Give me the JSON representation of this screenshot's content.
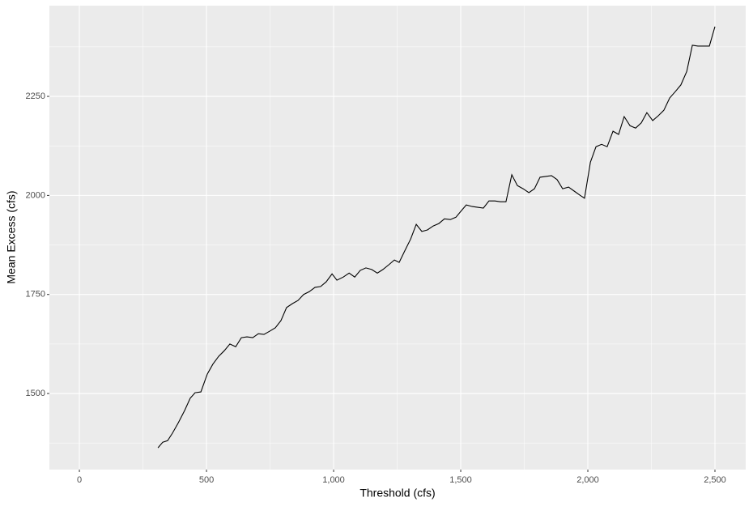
{
  "chart_data": {
    "type": "line",
    "x_label": "Threshold (cfs)",
    "y_label": "Mean Excess (cfs)",
    "x": [
      309,
      328,
      347,
      366,
      389,
      414,
      436,
      455,
      478,
      503,
      525,
      548,
      570,
      592,
      615,
      637,
      659,
      682,
      704,
      726,
      748,
      771,
      793,
      815,
      838,
      860,
      882,
      904,
      927,
      949,
      971,
      994,
      1013,
      1038,
      1061,
      1083,
      1105,
      1127,
      1150,
      1172,
      1194,
      1217,
      1239,
      1258,
      1280,
      1303,
      1325,
      1347,
      1369,
      1392,
      1414,
      1436,
      1459,
      1481,
      1503,
      1522,
      1545,
      1567,
      1589,
      1611,
      1634,
      1656,
      1678,
      1701,
      1723,
      1745,
      1768,
      1790,
      1812,
      1834,
      1857,
      1879,
      1901,
      1924,
      1946,
      1968,
      1987,
      2010,
      2032,
      2054,
      2076,
      2099,
      2121,
      2143,
      2166,
      2188,
      2210,
      2232,
      2255,
      2277,
      2299,
      2322,
      2344,
      2366,
      2389,
      2411,
      2433,
      2455,
      2478,
      2500
    ],
    "series": [
      {
        "color": "#000000",
        "values": [
          1363,
          1377,
          1381,
          1400,
          1426,
          1457,
          1488,
          1502,
          1504,
          1549,
          1574,
          1594,
          1608,
          1625,
          1618,
          1641,
          1643,
          1641,
          1651,
          1649,
          1657,
          1666,
          1684,
          1717,
          1727,
          1735,
          1750,
          1757,
          1768,
          1770,
          1782,
          1802,
          1786,
          1794,
          1804,
          1794,
          1811,
          1817,
          1813,
          1804,
          1813,
          1825,
          1837,
          1831,
          1860,
          1890,
          1927,
          1909,
          1913,
          1923,
          1929,
          1941,
          1939,
          1945,
          1962,
          1976,
          1972,
          1970,
          1968,
          1986,
          1986,
          1984,
          1984,
          2052,
          2025,
          2017,
          2007,
          2017,
          2046,
          2048,
          2050,
          2040,
          2017,
          2021,
          2011,
          2001,
          1993,
          2084,
          2123,
          2129,
          2123,
          2162,
          2154,
          2199,
          2176,
          2170,
          2183,
          2209,
          2189,
          2201,
          2215,
          2246,
          2262,
          2279,
          2313,
          2379,
          2377,
          2377,
          2377,
          2426
        ]
      }
    ],
    "xlim": [
      -118,
      2621
    ],
    "ylim": [
      1308,
      2479
    ],
    "xticks": [
      0,
      500,
      {
        "value": 1000,
        "label": "1,000"
      },
      {
        "value": 1500,
        "label": "1,500"
      },
      {
        "value": 2000,
        "label": "2,000"
      },
      {
        "value": 2500,
        "label": "2,500"
      }
    ],
    "yticks": [
      1500,
      1750,
      2000,
      2250
    ],
    "grid": true,
    "panel_color": "#ebebeb",
    "grid_color": "#ffffff"
  }
}
